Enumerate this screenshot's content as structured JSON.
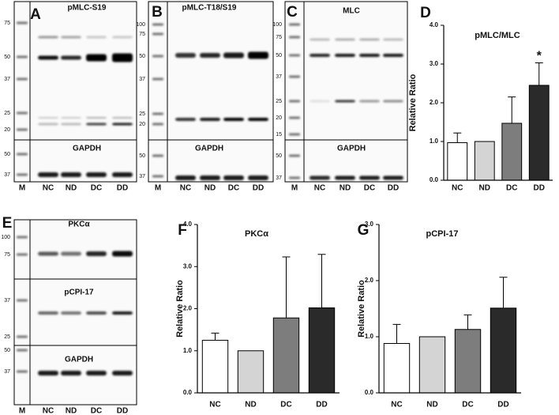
{
  "blots": [
    {
      "letter": "A",
      "lanes": [
        "M",
        "NC",
        "ND",
        "DC",
        "DD"
      ],
      "sections": [
        {
          "target": "pMLC-S19",
          "markers": [
            75,
            50,
            37,
            25,
            20
          ]
        },
        {
          "target": "GAPDH",
          "markers": [
            50,
            37
          ]
        }
      ]
    },
    {
      "letter": "B",
      "lanes": [
        "M",
        "NC",
        "ND",
        "DC",
        "DD"
      ],
      "sections": [
        {
          "target": "pMLC-T18/S19",
          "markers": [
            100,
            75,
            50,
            37,
            25,
            20
          ]
        },
        {
          "target": "GAPDH",
          "markers": [
            50,
            37
          ]
        }
      ]
    },
    {
      "letter": "C",
      "lanes": [
        "M",
        "NC",
        "ND",
        "DC",
        "DD"
      ],
      "sections": [
        {
          "target": "MLC",
          "markers": [
            100,
            75,
            50,
            37,
            25,
            20,
            15
          ]
        },
        {
          "target": "GAPDH",
          "markers": [
            50,
            37
          ]
        }
      ]
    },
    {
      "letter": "E",
      "lanes": [
        "M",
        "NC",
        "ND",
        "DC",
        "DD"
      ],
      "sections": [
        {
          "target": "PKCα",
          "markers": [
            100,
            75
          ]
        },
        {
          "target": "pCPI-17",
          "markers": [
            37,
            25
          ]
        },
        {
          "target": "GAPDH",
          "markers": [
            50,
            37
          ]
        }
      ]
    }
  ],
  "chart_data": [
    {
      "type": "bar",
      "letter": "D",
      "title": "pMLC/MLC",
      "y_label": "Relative Ratio",
      "categories": [
        "NC",
        "ND",
        "DC",
        "DD"
      ],
      "values": [
        0.97,
        1.0,
        1.47,
        2.45
      ],
      "errors": [
        0.25,
        null,
        0.68,
        0.58
      ],
      "colors": [
        "#ffffff",
        "#d4d4d4",
        "#7d7d7d",
        "#2a2a2a"
      ],
      "significance": [
        null,
        null,
        null,
        "*"
      ],
      "ylim": [
        0,
        4
      ],
      "yticks": [
        {
          "value": 0,
          "label": "0.0"
        },
        {
          "value": 1,
          "label": "1.0"
        },
        {
          "value": 2,
          "label": "2.0"
        },
        {
          "value": 3,
          "label": "3.0"
        },
        {
          "value": 4,
          "label": "4.0"
        }
      ]
    },
    {
      "type": "bar",
      "letter": "F",
      "title": "PKCα",
      "y_label": "Relative Ratio",
      "categories": [
        "NC",
        "ND",
        "DC",
        "DD"
      ],
      "values": [
        1.25,
        1.0,
        1.78,
        2.02
      ],
      "errors": [
        0.17,
        null,
        1.45,
        1.27
      ],
      "colors": [
        "#ffffff",
        "#d4d4d4",
        "#7d7d7d",
        "#2a2a2a"
      ],
      "ylim": [
        0,
        4
      ],
      "yticks": [
        {
          "value": 0,
          "label": "0.0"
        },
        {
          "value": 1,
          "label": "1.0"
        },
        {
          "value": 2,
          "label": "2.0"
        },
        {
          "value": 3,
          "label": "3.0"
        },
        {
          "value": 4,
          "label": "4.0"
        }
      ]
    },
    {
      "type": "bar",
      "letter": "G",
      "title": "pCPI-17",
      "y_label": "Relative Ratio",
      "categories": [
        "NC",
        "ND",
        "DC",
        "DD"
      ],
      "values": [
        0.88,
        1.0,
        1.13,
        1.51
      ],
      "errors": [
        0.34,
        null,
        0.26,
        0.55
      ],
      "colors": [
        "#ffffff",
        "#d4d4d4",
        "#7d7d7d",
        "#2a2a2a"
      ],
      "ylim": [
        0,
        3
      ],
      "yticks": [
        {
          "value": 0,
          "label": "0.0"
        },
        {
          "value": 1,
          "label": "1.0"
        },
        {
          "value": 2,
          "label": "2.0"
        },
        {
          "value": 3,
          "label": "3.0"
        }
      ]
    }
  ]
}
